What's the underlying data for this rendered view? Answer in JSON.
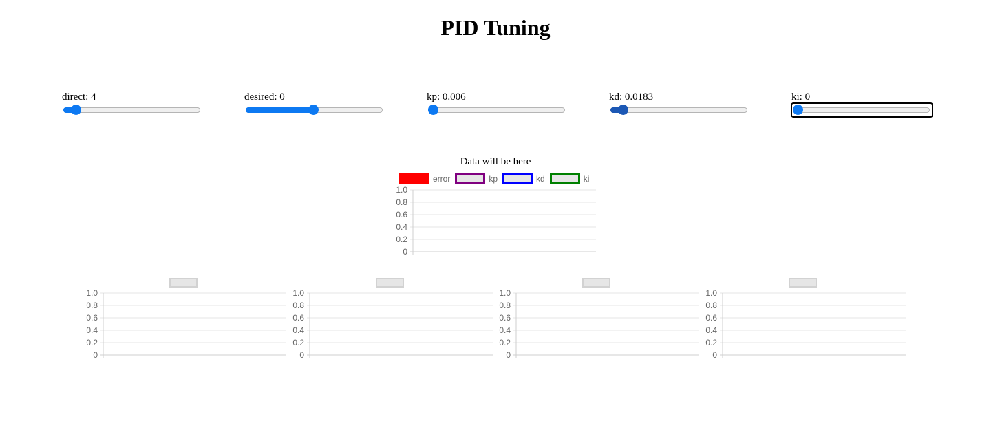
{
  "header": {
    "title": "PID Tuning"
  },
  "sliders": [
    {
      "id": "direct",
      "label": "direct: 4",
      "fraction": 0.06,
      "color": "#0d79f2"
    },
    {
      "id": "desired",
      "label": "desired: 0",
      "fraction": 0.5,
      "color": "#0d79f2"
    },
    {
      "id": "kp",
      "label": "kp: 0.006",
      "fraction": 0.0,
      "color": "#0d79f2"
    },
    {
      "id": "kd",
      "label": "kd: 0.0183",
      "fraction": 0.06,
      "color": "#1c58b5"
    },
    {
      "id": "ki",
      "label": "ki: 0",
      "fraction": 0.0,
      "color": "#0d79f2"
    }
  ],
  "main_chart": {
    "title": "Data will be here",
    "legend": [
      {
        "name": "error",
        "fill": "#ff0000",
        "border": "#ff0000"
      },
      {
        "name": "kp",
        "fill": "#e6e6e6",
        "border": "#800080"
      },
      {
        "name": "kd",
        "fill": "#e6e6e6",
        "border": "#0000ff"
      },
      {
        "name": "ki",
        "fill": "#e6e6e6",
        "border": "#008000"
      }
    ]
  },
  "chart_data": [
    {
      "type": "line",
      "title": "Data will be here",
      "series": [
        {
          "name": "error",
          "values": []
        },
        {
          "name": "kp",
          "values": []
        },
        {
          "name": "kd",
          "values": []
        },
        {
          "name": "ki",
          "values": []
        }
      ],
      "yticks": [
        "1.0",
        "0.8",
        "0.6",
        "0.4",
        "0.2",
        "0"
      ],
      "ylim": [
        0,
        1
      ],
      "grid": true,
      "legend": "top"
    },
    {
      "type": "line",
      "series": [
        {
          "values": []
        }
      ],
      "yticks": [
        "1.0",
        "0.8",
        "0.6",
        "0.4",
        "0.2",
        "0"
      ],
      "ylim": [
        0,
        1
      ],
      "grid": true
    },
    {
      "type": "line",
      "series": [
        {
          "values": []
        }
      ],
      "yticks": [
        "1.0",
        "0.8",
        "0.6",
        "0.4",
        "0.2",
        "0"
      ],
      "ylim": [
        0,
        1
      ],
      "grid": true
    },
    {
      "type": "line",
      "series": [
        {
          "values": []
        }
      ],
      "yticks": [
        "1.0",
        "0.8",
        "0.6",
        "0.4",
        "0.2",
        "0"
      ],
      "ylim": [
        0,
        1
      ],
      "grid": true
    },
    {
      "type": "line",
      "series": [
        {
          "values": []
        }
      ],
      "yticks": [
        "1.0",
        "0.8",
        "0.6",
        "0.4",
        "0.2",
        "0"
      ],
      "ylim": [
        0,
        1
      ],
      "grid": true
    }
  ]
}
